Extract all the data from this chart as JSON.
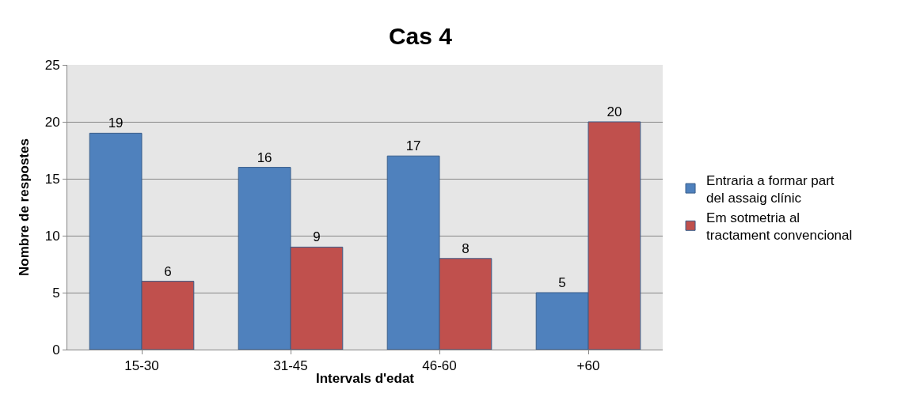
{
  "chart_data": {
    "type": "bar",
    "title": "Cas 4",
    "xlabel": "Intervals d'edat",
    "ylabel": "Nombre de respostes",
    "categories": [
      "15-30",
      "31-45",
      "46-60",
      "+60"
    ],
    "series": [
      {
        "name": "Entraria a formar part del assaig clínic",
        "color": "#4f81bd",
        "values": [
          19,
          16,
          17,
          5
        ]
      },
      {
        "name": "Em sotmetria al tractament convencional",
        "color": "#c0504d",
        "values": [
          6,
          9,
          8,
          20
        ]
      }
    ],
    "ylim": [
      0,
      25
    ],
    "yticks": [
      0,
      5,
      10,
      15,
      20,
      25
    ],
    "grid": "y",
    "legend": "right",
    "data_labels": true
  }
}
